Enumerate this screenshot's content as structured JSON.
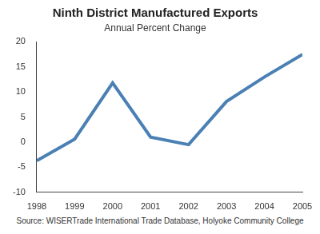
{
  "chart_data": {
    "type": "line",
    "title": "Ninth District Manufactured Exports",
    "subtitle": "Annual Percent Change",
    "source": "Source: WISERTrade International Trade Database, Holyoke Community College",
    "categories": [
      "1998",
      "1999",
      "2000",
      "2001",
      "2002",
      "2003",
      "2004",
      "2005"
    ],
    "values": [
      -3.7,
      0.6,
      11.8,
      1.0,
      -0.5,
      8.1,
      13.0,
      17.5
    ],
    "color": "#4a80b4",
    "ylim": [
      -10,
      20
    ],
    "yticks": [
      -10,
      -5,
      0,
      5,
      10,
      15,
      20
    ],
    "grid": false
  }
}
